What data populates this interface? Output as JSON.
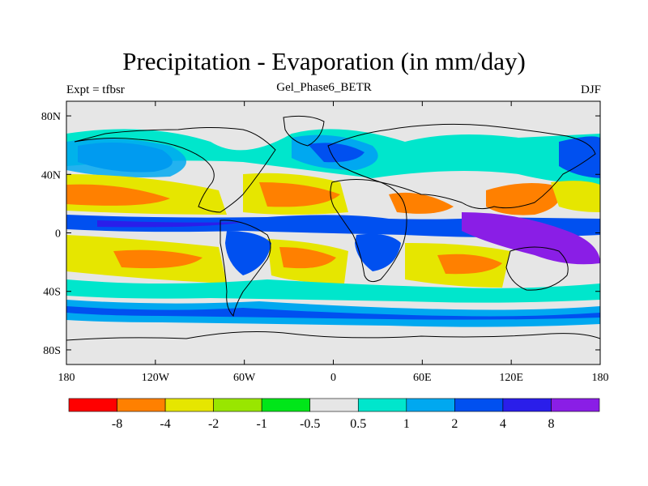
{
  "title": "Precipitation - Evaporation (in mm/day)",
  "left_label": "Expt = tfbsr",
  "center_label": "Gel_Phase6_BETR",
  "right_label": "DJF",
  "axes": {
    "x_ticks": [
      "180",
      "120W",
      "60W",
      "0",
      "60E",
      "120E",
      "180"
    ],
    "y_ticks": [
      "80N",
      "40N",
      "0",
      "40S",
      "80S"
    ],
    "lon_values": [
      -180,
      -120,
      -60,
      0,
      60,
      120,
      180
    ],
    "lat_values": [
      80,
      40,
      0,
      -40,
      -80
    ],
    "lon_range": [
      -180,
      180
    ],
    "lat_range": [
      -90,
      90
    ]
  },
  "colorbar": {
    "labels": [
      "-8",
      "-4",
      "-2",
      "-1",
      "-0.5",
      "0.5",
      "1",
      "2",
      "4",
      "8"
    ],
    "colors": [
      "#ff0000",
      "#ff8000",
      "#e6e600",
      "#99e600",
      "#00e619",
      "#e6e6e6",
      "#00e6cc",
      "#00a8f0",
      "#0050f0",
      "#2a1eea",
      "#8a1ee6"
    ]
  },
  "colors": {
    "ocean_neutral": "#e6e6e6",
    "coast": "#000000"
  }
}
